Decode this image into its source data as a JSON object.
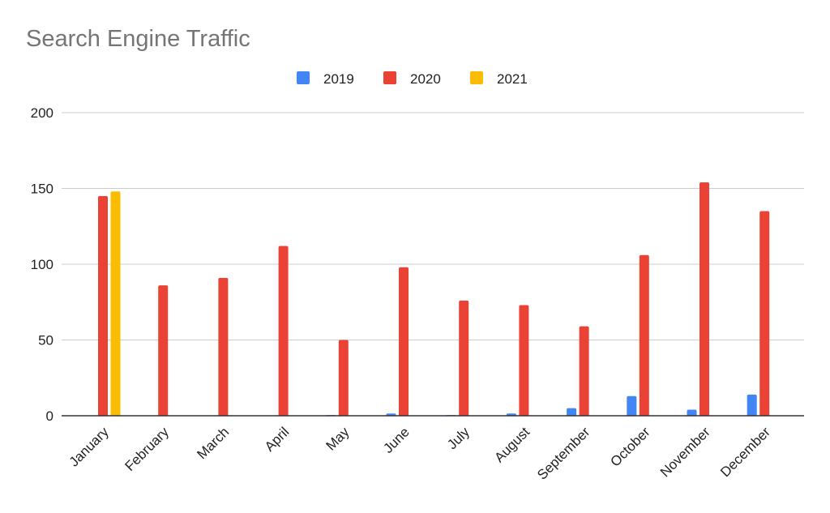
{
  "chart_data": {
    "type": "bar",
    "title": "Search Engine Traffic",
    "xlabel": "",
    "ylabel": "",
    "ylim": [
      0,
      200
    ],
    "yticks": [
      0,
      50,
      100,
      150,
      200
    ],
    "grid": true,
    "legend_position": "top",
    "categories": [
      "January",
      "February",
      "March",
      "April",
      "May",
      "June",
      "July",
      "August",
      "September",
      "October",
      "November",
      "December"
    ],
    "series": [
      {
        "name": "2019",
        "color": "#4285f4",
        "values": [
          null,
          null,
          null,
          null,
          0.5,
          1.5,
          0.5,
          1.5,
          5,
          13,
          4,
          14
        ]
      },
      {
        "name": "2020",
        "color": "#ea4335",
        "values": [
          145,
          86,
          91,
          112,
          50,
          98,
          76,
          73,
          59,
          106,
          154,
          135
        ]
      },
      {
        "name": "2021",
        "color": "#fbbc04",
        "values": [
          148,
          null,
          null,
          null,
          null,
          null,
          null,
          null,
          null,
          null,
          null,
          null
        ]
      }
    ]
  }
}
